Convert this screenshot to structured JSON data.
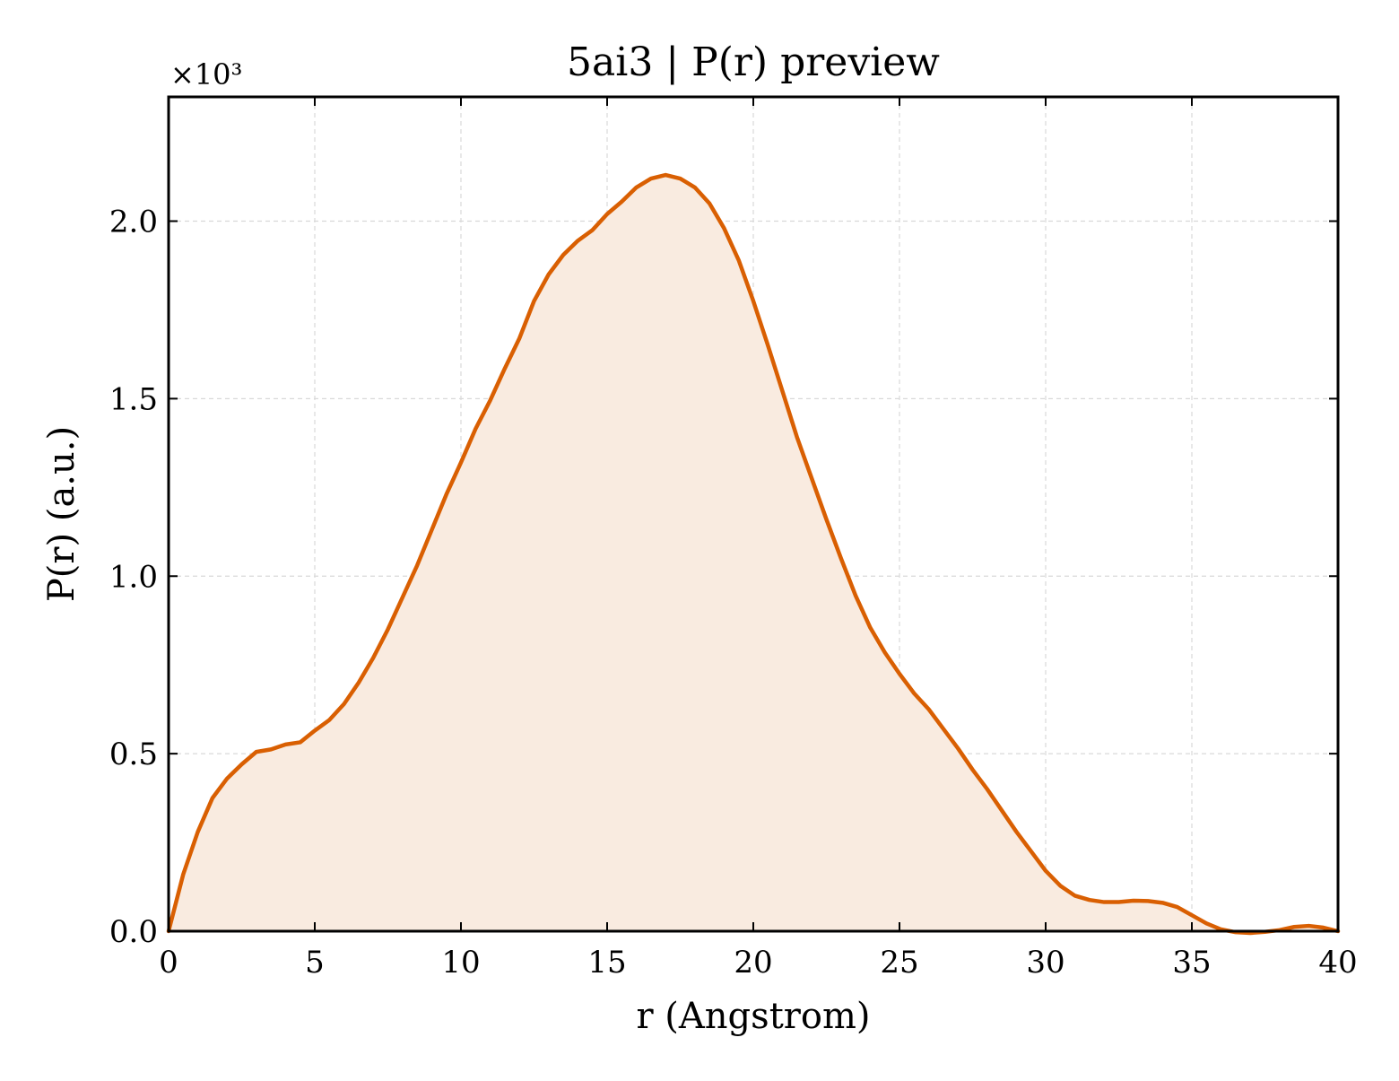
{
  "chart_data": {
    "type": "area",
    "title": "5ai3 | P(r) preview",
    "xlabel": "r (Angstrom)",
    "ylabel": "P(r) (a.u.)",
    "y_multiplier_label": "×10³",
    "xlim": [
      0,
      40
    ],
    "ylim": [
      0,
      2.35
    ],
    "y_units": "×10^3",
    "xticks": [
      0,
      5,
      10,
      15,
      20,
      25,
      30,
      35,
      40
    ],
    "xtick_labels": [
      "0",
      "5",
      "10",
      "15",
      "20",
      "25",
      "30",
      "35",
      "40"
    ],
    "yticks": [
      0,
      0.5,
      1.0,
      1.5,
      2.0
    ],
    "ytick_labels": [
      "0.0",
      "0.5",
      "1.0",
      "1.5",
      "2.0"
    ],
    "grid": true,
    "line_color": "#d95f02",
    "fill_color": "#f9ebe0",
    "series": [
      {
        "x": [
          0,
          0.5,
          1.0,
          1.5,
          2.0,
          2.5,
          3.0,
          3.5,
          4.0,
          4.5,
          5.0,
          5.5,
          6.0,
          6.5,
          7.0,
          7.5,
          8.0,
          8.5,
          9.0,
          9.5,
          10.0,
          10.5,
          11.0,
          11.5,
          12.0,
          12.5,
          13.0,
          13.5,
          14.0,
          14.5,
          15.0,
          15.5,
          16.0,
          16.5,
          17.0,
          17.5,
          18.0,
          18.5,
          19.0,
          19.5,
          20.0,
          20.5,
          21.0,
          21.5,
          22.0,
          22.5,
          23.0,
          23.5,
          24.0,
          24.5,
          25.0,
          25.5,
          26.0,
          26.5,
          27.0,
          27.5,
          28.0,
          28.5,
          29.0,
          29.5,
          30.0,
          30.5,
          31.0,
          31.5,
          32.0,
          32.5,
          33.0,
          33.5,
          34.0,
          34.5,
          35.0,
          35.5,
          36.0,
          36.5,
          37.0,
          37.5,
          38.0,
          38.5,
          39.0,
          39.5,
          40.0
        ],
        "y": [
          0.0,
          0.16,
          0.28,
          0.375,
          0.43,
          0.47,
          0.505,
          0.512,
          0.526,
          0.532,
          0.565,
          0.595,
          0.64,
          0.7,
          0.77,
          0.85,
          0.94,
          1.03,
          1.13,
          1.23,
          1.32,
          1.415,
          1.495,
          1.585,
          1.67,
          1.775,
          1.85,
          1.905,
          1.945,
          1.975,
          2.02,
          2.055,
          2.095,
          2.12,
          2.13,
          2.12,
          2.095,
          2.05,
          1.98,
          1.89,
          1.775,
          1.65,
          1.52,
          1.39,
          1.275,
          1.16,
          1.05,
          0.945,
          0.855,
          0.785,
          0.725,
          0.67,
          0.625,
          0.57,
          0.515,
          0.455,
          0.4,
          0.34,
          0.28,
          0.225,
          0.17,
          0.128,
          0.1,
          0.088,
          0.082,
          0.082,
          0.086,
          0.085,
          0.08,
          0.068,
          0.045,
          0.022,
          0.005,
          -0.003,
          -0.005,
          -0.002,
          0.003,
          0.012,
          0.015,
          0.01,
          0.0
        ]
      }
    ]
  }
}
